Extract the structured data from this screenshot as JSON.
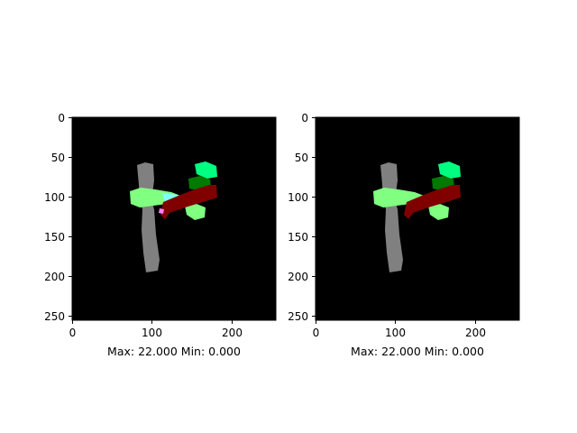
{
  "panels": [
    {
      "id": "left",
      "caption": "Max: 22.000 Min: 0.000",
      "x_ticks": [
        "0",
        "100",
        "200"
      ],
      "y_ticks": [
        "0",
        "50",
        "100",
        "150",
        "200",
        "250"
      ]
    },
    {
      "id": "right",
      "caption": "Max: 22.000 Min: 0.000",
      "x_ticks": [
        "0",
        "100",
        "200"
      ],
      "y_ticks": [
        "0",
        "50",
        "100",
        "150",
        "200",
        "250"
      ]
    }
  ],
  "colors": {
    "background": "#000000",
    "gray_structure": "#808080",
    "light_green": "#80ff80",
    "spring_green": "#00ff80",
    "dark_green": "#007a00",
    "maroon": "#800000",
    "cyan": "#80ffff",
    "magenta": "#ff80ff"
  }
}
